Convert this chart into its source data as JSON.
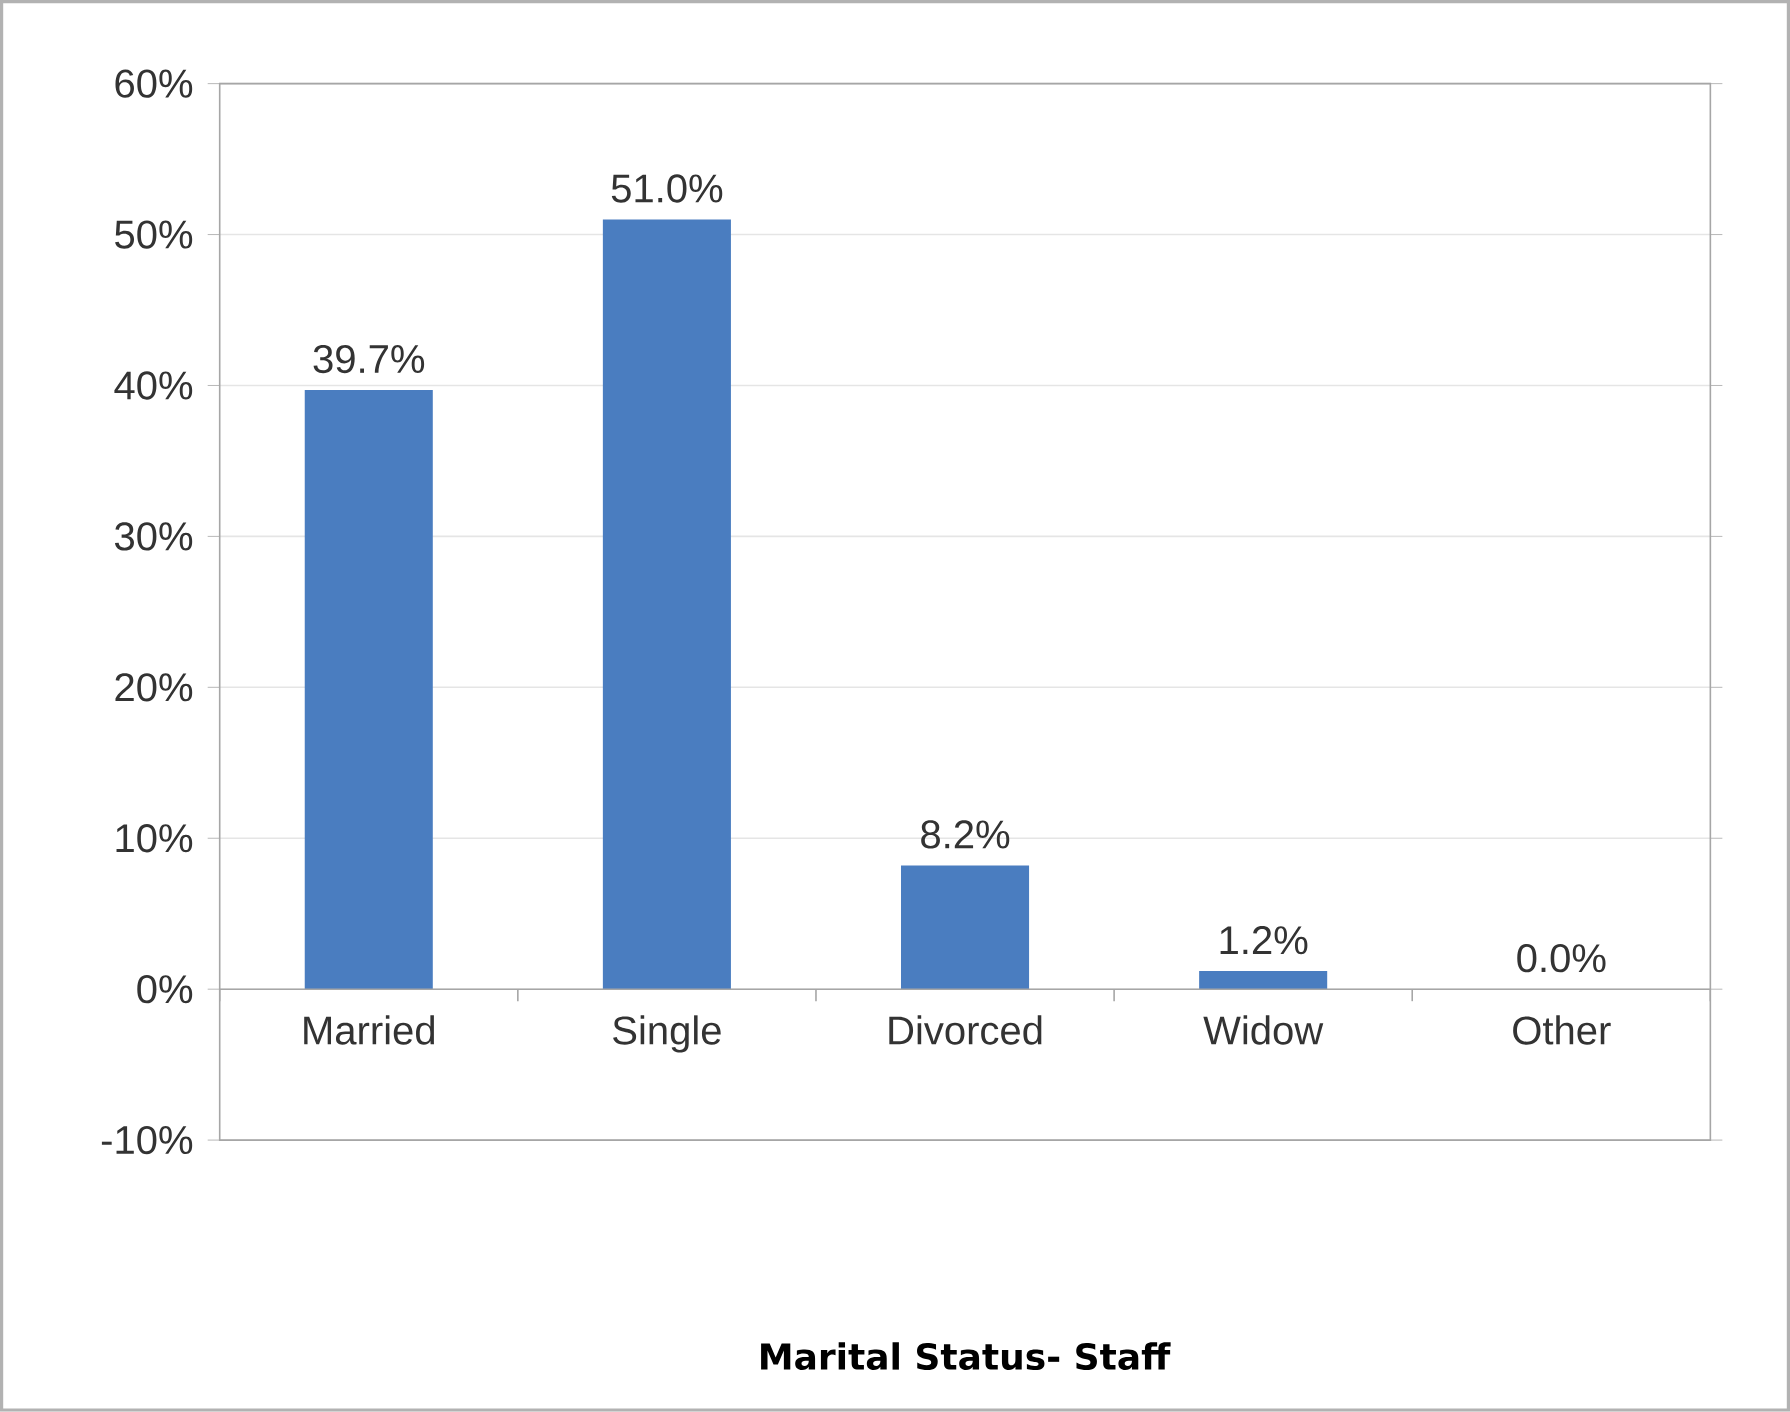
{
  "chart_data": {
    "type": "bar",
    "title": "Marital Status- Staff",
    "categories": [
      "Married",
      "Single",
      "Divorced",
      "Widow",
      "Other"
    ],
    "values": [
      39.7,
      51.0,
      8.2,
      1.2,
      0.0
    ],
    "value_labels": [
      "39.7%",
      "51.0%",
      "8.2%",
      "1.2%",
      "0.0%"
    ],
    "color": "#4a7dc0",
    "ylim": [
      -10,
      60
    ],
    "yticks": [
      {
        "value": -10,
        "label": "-10%"
      },
      {
        "value": 0,
        "label": "0%"
      },
      {
        "value": 10,
        "label": "10%"
      },
      {
        "value": 20,
        "label": "20%"
      },
      {
        "value": 30,
        "label": "30%"
      },
      {
        "value": 40,
        "label": "40%"
      },
      {
        "value": 50,
        "label": "50%"
      },
      {
        "value": 60,
        "label": "60%"
      }
    ],
    "grid": "y"
  }
}
